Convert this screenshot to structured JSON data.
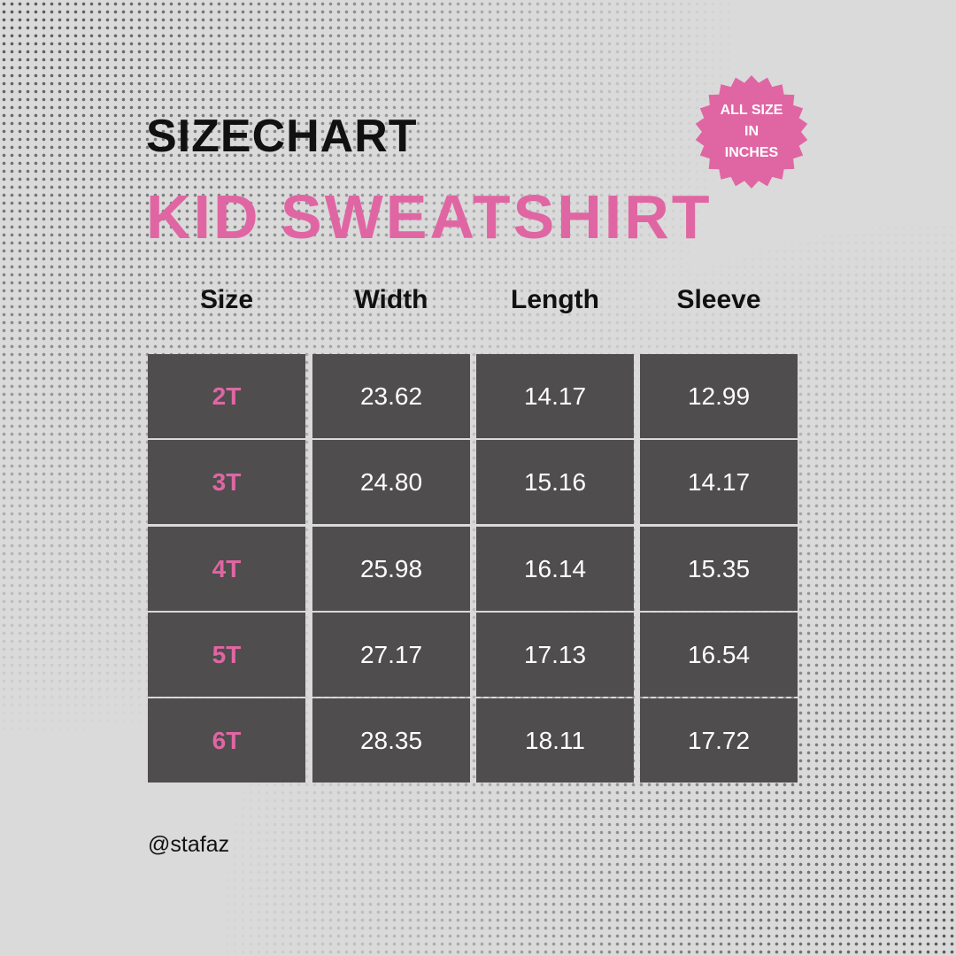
{
  "title": "SIZECHART",
  "subtitle": "KID SWEATSHIRT",
  "badge": {
    "line1": "ALL SIZE",
    "line2": "IN",
    "line3": "INCHES",
    "color": "#e066a3"
  },
  "table": {
    "headers": [
      "Size",
      "Width",
      "Length",
      "Sleeve"
    ],
    "rows": [
      [
        "2T",
        "23.62",
        "14.17",
        "12.99"
      ],
      [
        "3T",
        "24.80",
        "15.16",
        "14.17"
      ],
      [
        "4T",
        "25.98",
        "16.14",
        "15.35"
      ],
      [
        "5T",
        "27.17",
        "17.13",
        "16.54"
      ],
      [
        "6T",
        "28.35",
        "18.11",
        "17.72"
      ]
    ]
  },
  "handle": "@stafaz",
  "colors": {
    "accent": "#e066a3",
    "cell": "#4f4d4e",
    "background": "#dadada"
  }
}
